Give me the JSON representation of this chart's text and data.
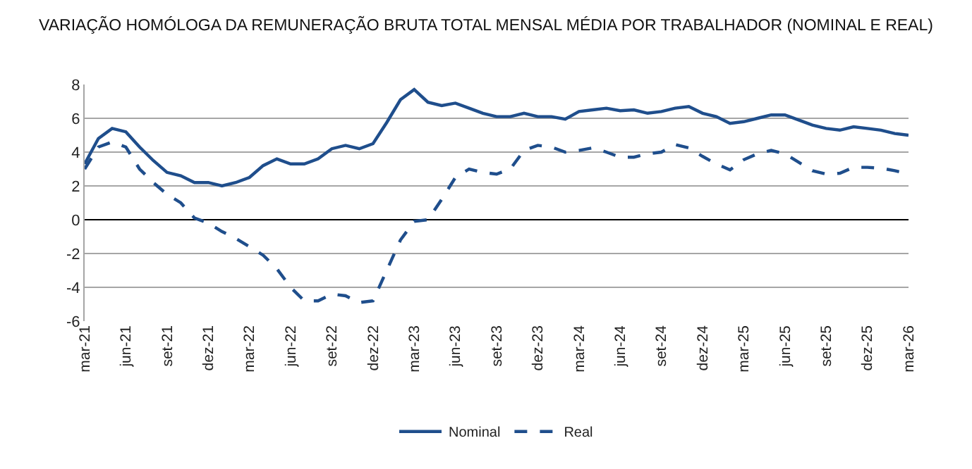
{
  "chart_data": {
    "type": "line",
    "title": "VARIAÇÃO HOMÓLOGA DA REMUNERAÇÃO BRUTA TOTAL MENSAL MÉDIA POR TRABALHADOR (NOMINAL E REAL)",
    "categories": [
      "mar-21",
      null,
      null,
      "jun-21",
      null,
      null,
      "set-21",
      null,
      null,
      "dez-21",
      null,
      null,
      "mar-22",
      null,
      null,
      "jun-22",
      null,
      null,
      "set-22",
      null,
      null,
      "dez-22",
      null,
      null,
      "mar-23",
      null,
      null,
      "jun-23",
      null,
      null,
      "set-23",
      null,
      null,
      "dez-23",
      null,
      null,
      "mar-24",
      null,
      null,
      "jun-24",
      null,
      null,
      "set-24",
      null,
      null,
      "dez-24",
      null,
      null,
      "mar-25",
      null,
      null,
      "jun-25",
      null,
      null,
      "set-25",
      null,
      null,
      "dez-25",
      null,
      null,
      "mar-26"
    ],
    "series": [
      {
        "name": "Nominal",
        "color": "#1f4e8c",
        "line_style": "solid",
        "values": [
          3.3,
          4.8,
          5.4,
          5.2,
          4.3,
          3.5,
          2.8,
          2.6,
          2.2,
          2.2,
          2.0,
          2.2,
          2.5,
          3.2,
          3.6,
          3.3,
          3.3,
          3.6,
          4.2,
          4.4,
          4.2,
          4.5,
          5.75,
          7.1,
          7.7,
          6.95,
          6.75,
          6.9,
          6.6,
          6.3,
          6.1,
          6.1,
          6.3,
          6.1,
          6.1,
          5.95,
          6.4,
          6.5,
          6.6,
          6.45,
          6.5,
          6.3,
          6.4,
          6.6,
          6.7,
          6.3,
          6.1,
          5.7,
          5.8,
          6.0,
          6.2,
          6.2,
          5.9,
          5.6,
          5.4,
          5.3,
          5.5,
          5.4,
          5.3,
          5.1,
          5.0
        ]
      },
      {
        "name": "Real",
        "color": "#1f4e8c",
        "line_style": "dashed",
        "values": [
          3.0,
          4.3,
          4.6,
          4.3,
          3.0,
          2.2,
          1.5,
          1.0,
          0.1,
          -0.2,
          -0.7,
          -1.1,
          -1.6,
          -2.1,
          -2.9,
          -4.0,
          -4.8,
          -4.8,
          -4.4,
          -4.5,
          -4.9,
          -4.8,
          -3.0,
          -1.2,
          -0.1,
          0.0,
          1.2,
          2.5,
          3.0,
          2.8,
          2.7,
          3.0,
          4.1,
          4.4,
          4.3,
          4.0,
          4.1,
          4.25,
          4.0,
          3.7,
          3.7,
          3.9,
          4.0,
          4.45,
          4.25,
          3.75,
          3.3,
          2.95,
          3.55,
          3.9,
          4.1,
          3.9,
          3.4,
          2.9,
          2.7,
          2.75,
          3.1,
          3.1,
          3.05,
          2.9,
          2.7
        ]
      }
    ],
    "ylim": [
      -6,
      8
    ],
    "yticks": [
      -6,
      -4,
      -2,
      0,
      2,
      4,
      6,
      8
    ],
    "grid": "y",
    "legend": "bottom",
    "marker": "none"
  }
}
